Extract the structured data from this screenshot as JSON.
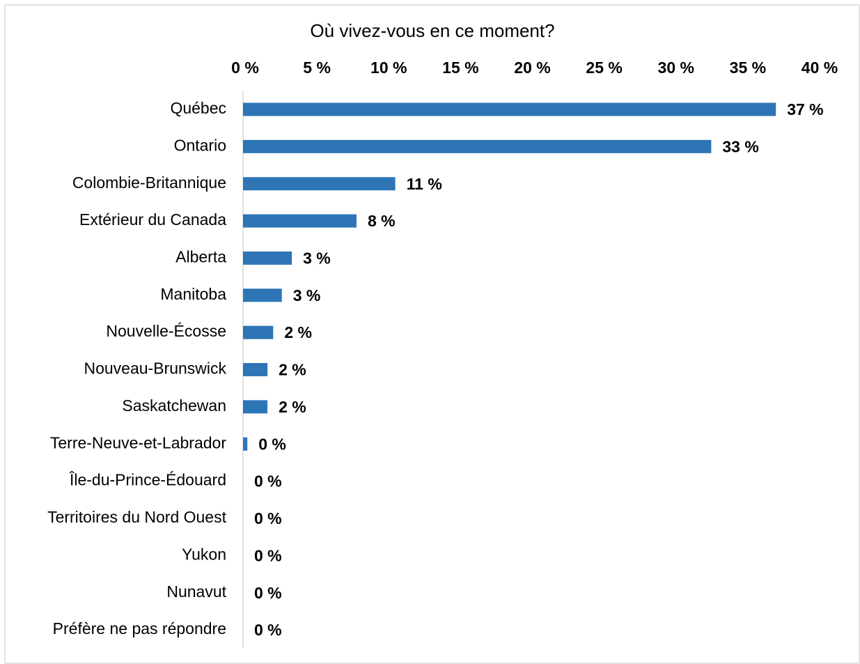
{
  "chart_data": {
    "type": "bar",
    "orientation": "horizontal",
    "title": "Où vivez-vous en ce moment?",
    "categories": [
      "Québec",
      "Ontario",
      "Colombie-Britannique",
      "Extérieur du Canada",
      "Alberta",
      "Manitoba",
      "Nouvelle-Écosse",
      "Nouveau-Brunswick",
      "Saskatchewan",
      "Terre-Neuve-et-Labrador",
      "Île-du-Prince-Édouard",
      "Territoires du Nord Ouest",
      "Yukon",
      "Nunavut",
      "Préfère ne pas répondre"
    ],
    "values": [
      37.1,
      32.6,
      10.6,
      7.9,
      3.4,
      2.7,
      2.1,
      1.7,
      1.7,
      0.3,
      0,
      0,
      0,
      0,
      0
    ],
    "value_labels": [
      "37 %",
      "33 %",
      "11 %",
      "8 %",
      "3 %",
      "3 %",
      "2 %",
      "2 %",
      "2 %",
      "0 %",
      "0 %",
      "0 %",
      "0 %",
      "0 %",
      "0 %"
    ],
    "color": "#2e75b6",
    "xlim": [
      0,
      40
    ],
    "xticks": [
      {
        "value": 0,
        "label": "0 %"
      },
      {
        "value": 5,
        "label": "5 %"
      },
      {
        "value": 10,
        "label": "10 %"
      },
      {
        "value": 15,
        "label": "15 %"
      },
      {
        "value": 20,
        "label": "20 %"
      },
      {
        "value": 25,
        "label": "25 %"
      },
      {
        "value": 30,
        "label": "30 %"
      },
      {
        "value": 35,
        "label": "35 %"
      },
      {
        "value": 40,
        "label": "40 %"
      }
    ],
    "grid": false
  }
}
